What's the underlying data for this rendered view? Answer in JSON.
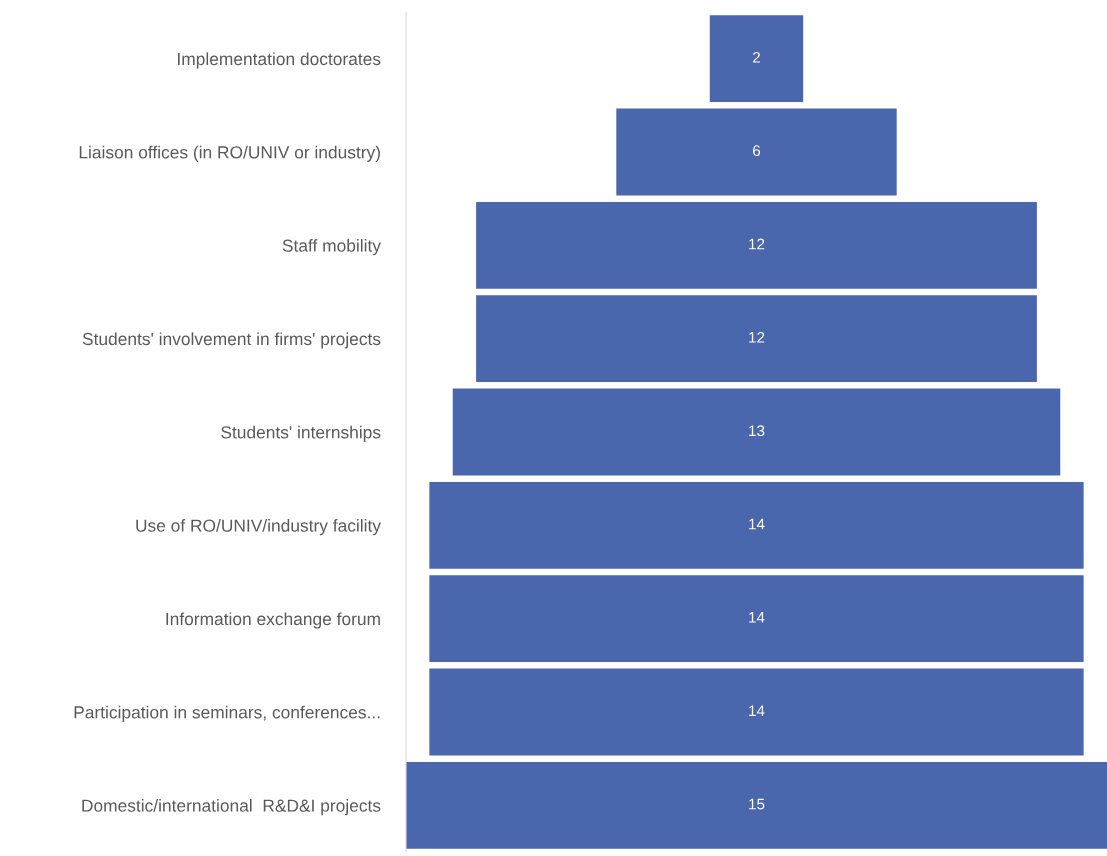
{
  "chart_data": {
    "type": "other",
    "categories": [
      "Implementation doctorates",
      "Liaison offices (in RO/UNIV or industry)",
      "Staff mobility",
      "Students' involvement in firms' projects",
      "Students' internships",
      "Use of RO/UNIV/industry facility",
      "Information exchange forum",
      "Participation in seminars, conferences...",
      "Domestic/international  R&D&I projects"
    ],
    "values": [
      2,
      6,
      12,
      12,
      13,
      14,
      14,
      14,
      15
    ],
    "color": "#4a67ad",
    "data_labels": true
  }
}
